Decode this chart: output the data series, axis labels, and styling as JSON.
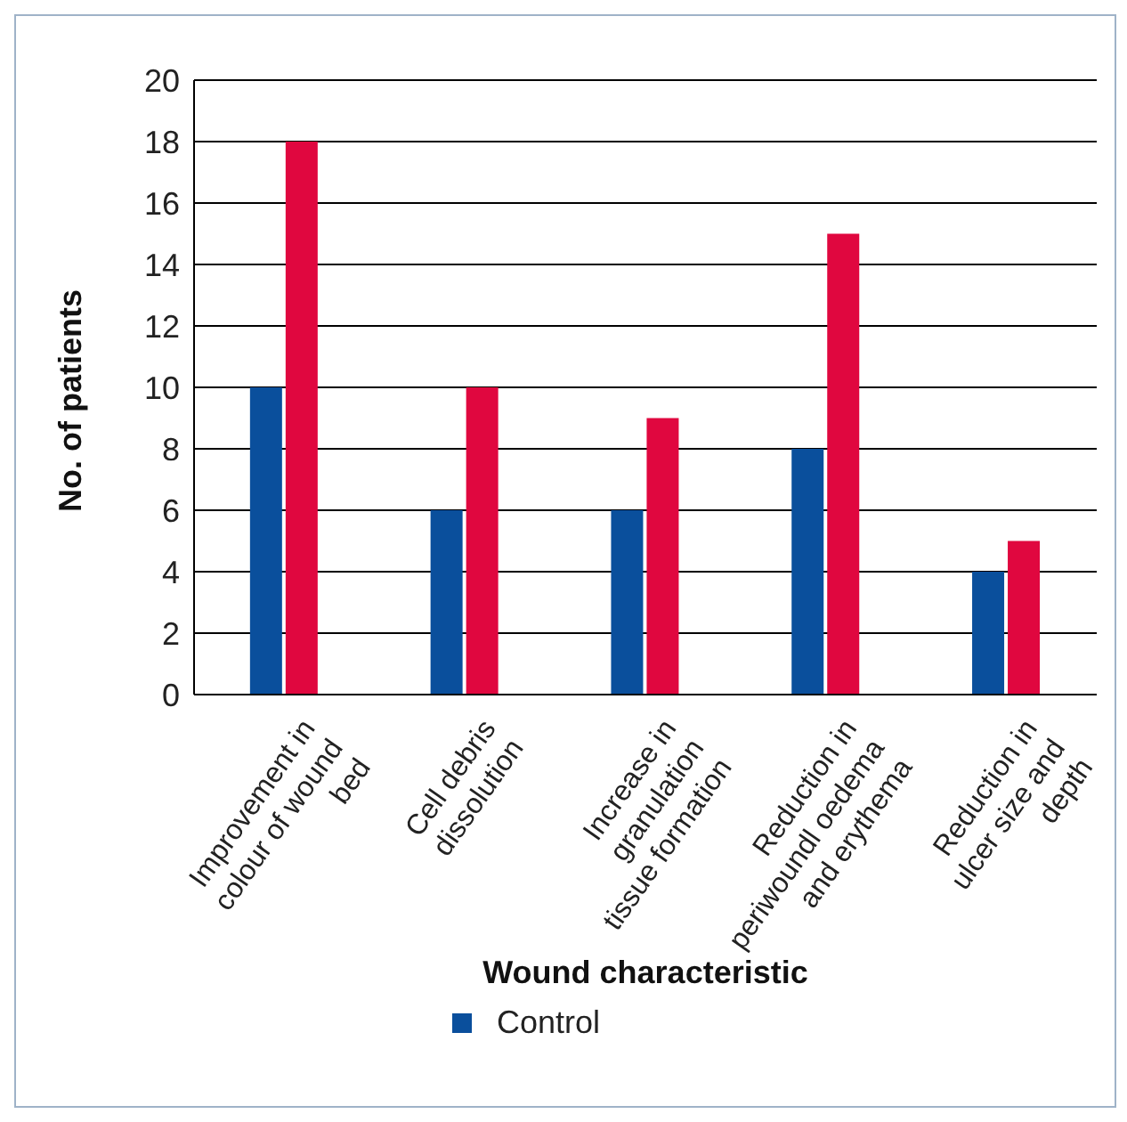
{
  "chart_data": {
    "type": "bar",
    "xlabel": "Wound characteristic",
    "ylabel": "No. of patients",
    "categories": [
      "Improvement in colour of wound bed",
      "Cell debris dissolution",
      "Increase in granulation tissue formation",
      "Reduction in periwoundl oedema and erythema",
      "Reduction in ulcer size and depth"
    ],
    "series": [
      {
        "name": "Control",
        "color": "#0a4f9c",
        "values": [
          10,
          6,
          6,
          8,
          4
        ]
      },
      {
        "color": "#e0073f",
        "values": [
          18,
          10,
          9,
          15,
          5
        ]
      }
    ],
    "ylim": [
      0,
      20
    ],
    "yticks": [
      0,
      2,
      4,
      6,
      8,
      10,
      12,
      14,
      16,
      18,
      20
    ],
    "grid": "y",
    "legend": "bottom"
  }
}
